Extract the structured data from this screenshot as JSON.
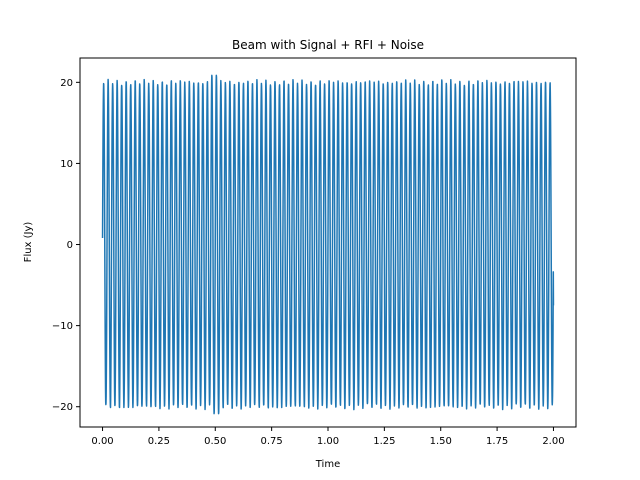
{
  "chart_data": {
    "type": "line",
    "title": "Beam with Signal + RFI + Noise",
    "xlabel": "Time",
    "ylabel": "Flux (Jy)",
    "xlim": [
      -0.1,
      2.1
    ],
    "ylim": [
      -22.5,
      23
    ],
    "xticks": [
      "0.00",
      "0.25",
      "0.50",
      "0.75",
      "1.00",
      "1.25",
      "1.50",
      "1.75",
      "2.00"
    ],
    "xtick_values": [
      0,
      0.25,
      0.5,
      0.75,
      1.0,
      1.25,
      1.5,
      1.75,
      2.0
    ],
    "yticks": [
      "−20",
      "−10",
      "0",
      "10",
      "20"
    ],
    "ytick_values": [
      -20,
      -10,
      0,
      10,
      20
    ],
    "grid": false,
    "legend": "none",
    "series": [
      {
        "color": "#1f77b4",
        "waveform": {
          "x_start": 0,
          "x_end": 2,
          "cycles": 100,
          "amplitude": 20,
          "start_value": 0.8,
          "end_value": -7.5,
          "peak_max": 21.1,
          "trough_min": -20.2
        }
      }
    ]
  }
}
